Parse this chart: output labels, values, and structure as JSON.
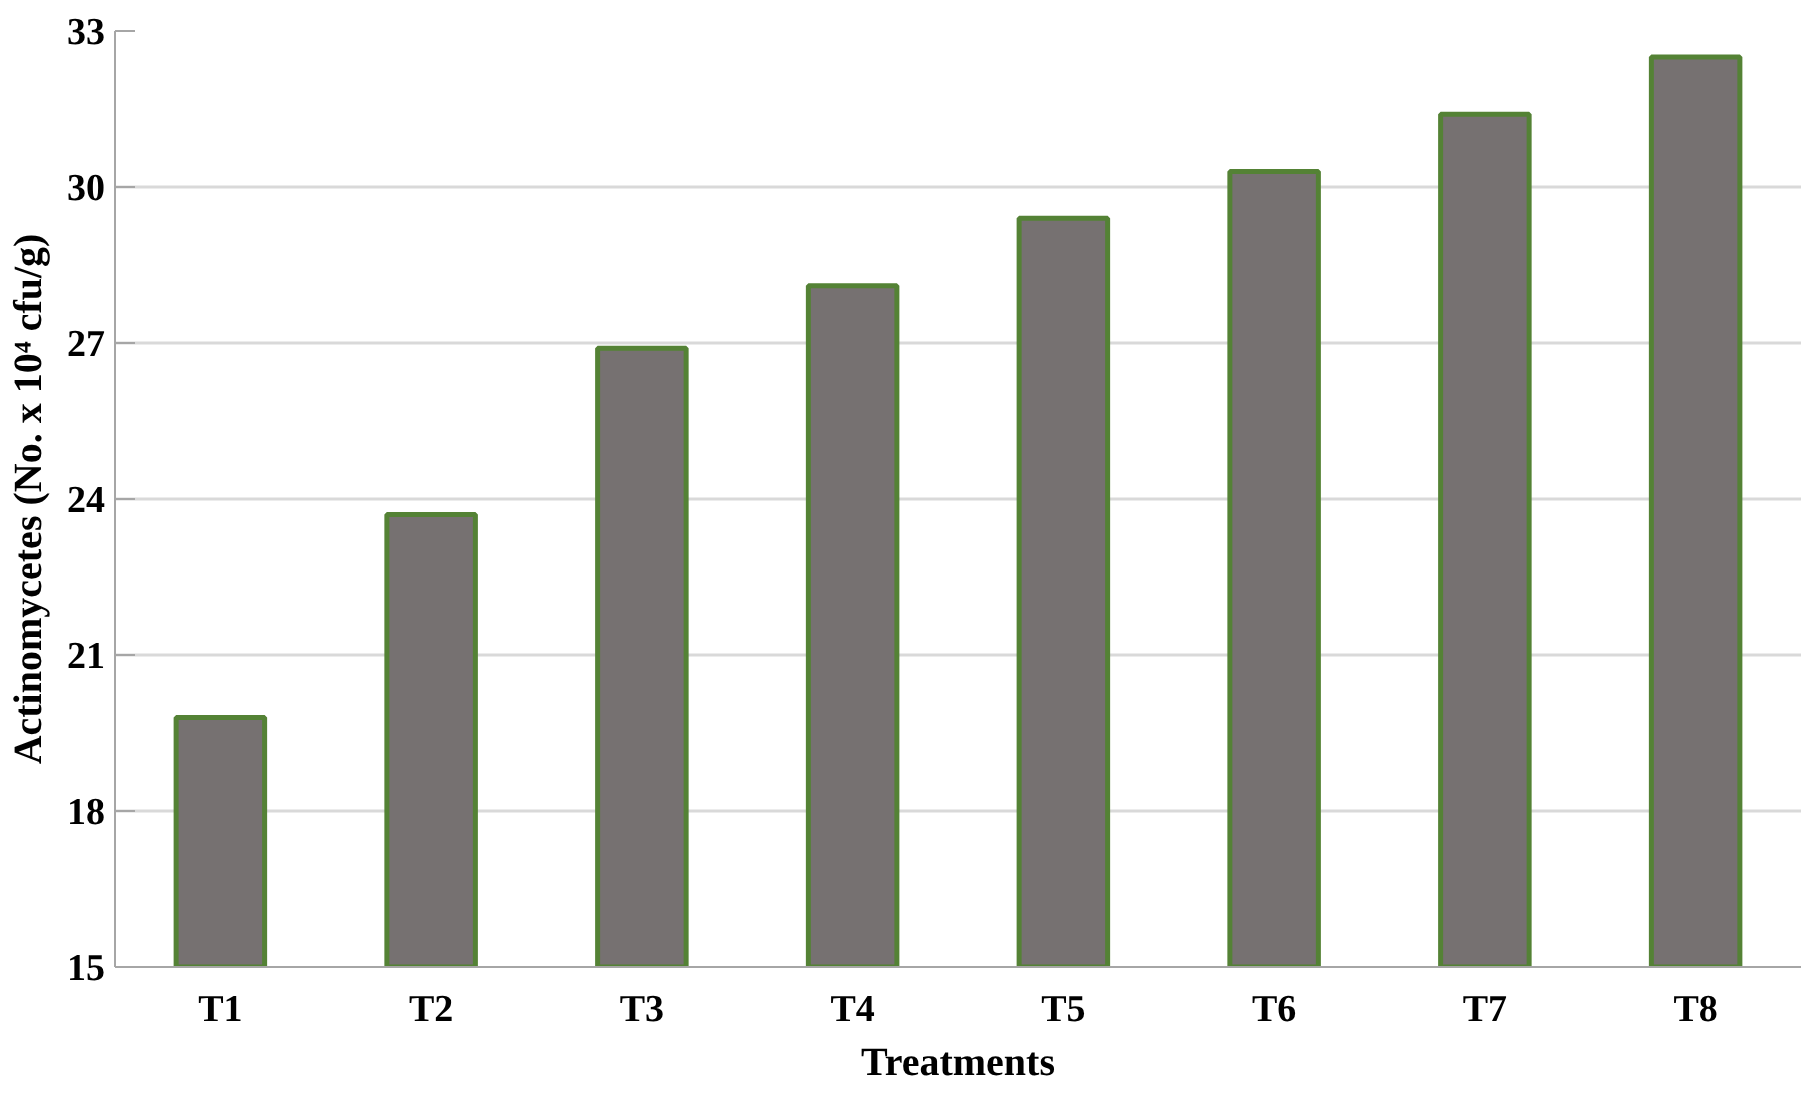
{
  "chart_data": {
    "type": "bar",
    "xlabel": "Treatments",
    "ylabel": "Actinomycetes (No. x 10⁴ cfu/g)",
    "categories": [
      "T1",
      "T2",
      "T3",
      "T4",
      "T5",
      "T6",
      "T7",
      "T8"
    ],
    "values": [
      19.8,
      23.7,
      26.9,
      28.1,
      29.4,
      30.3,
      31.4,
      32.5
    ],
    "color": "#767171",
    "ylim": [
      15,
      33
    ],
    "yticks": [
      15,
      18,
      21,
      24,
      27,
      30,
      33
    ],
    "grid": "y"
  }
}
